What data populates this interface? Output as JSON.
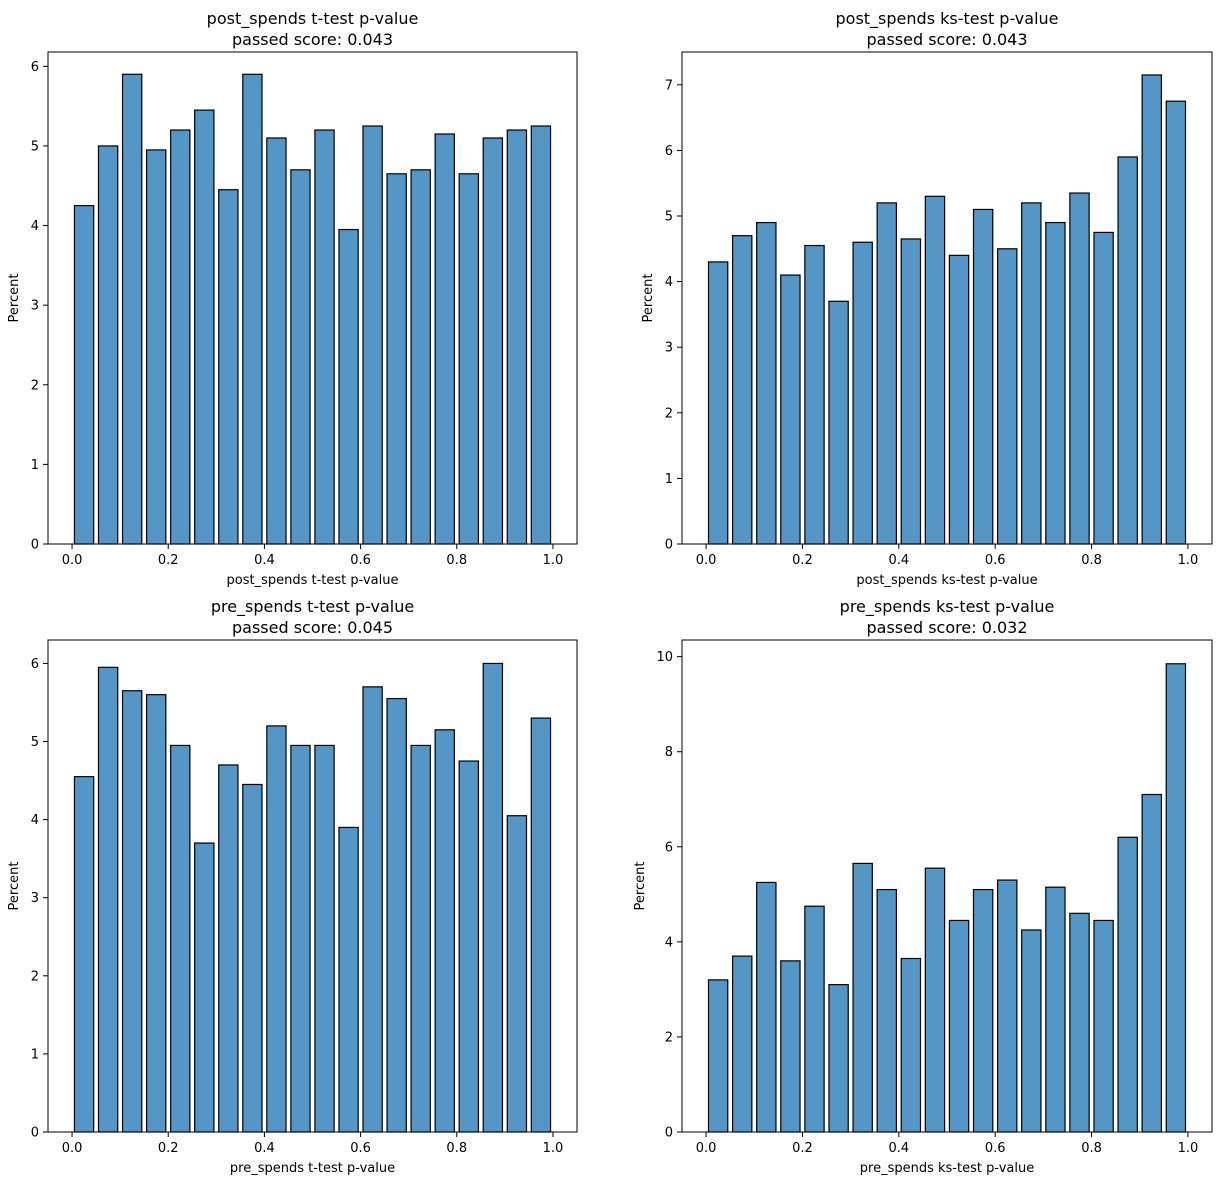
{
  "chart_data": [
    {
      "type": "bar",
      "title_line1": "post_spends t-test p-value",
      "title_line2": "passed score: 0.043",
      "xlabel": "post_spends t-test p-value",
      "ylabel": "Percent",
      "xlim": [
        -0.05,
        1.05
      ],
      "ylim": [
        0,
        6.18
      ],
      "xticks": [
        "0.0",
        "0.2",
        "0.4",
        "0.6",
        "0.8",
        "1.0"
      ],
      "yticks": [
        "0",
        "1",
        "2",
        "3",
        "4",
        "5",
        "6"
      ],
      "bin_centers": [
        0.025,
        0.075,
        0.125,
        0.175,
        0.225,
        0.275,
        0.325,
        0.375,
        0.425,
        0.475,
        0.525,
        0.575,
        0.625,
        0.675,
        0.725,
        0.775,
        0.825,
        0.875,
        0.925,
        0.975
      ],
      "values": [
        4.25,
        5.0,
        5.9,
        4.95,
        5.2,
        5.45,
        4.45,
        5.9,
        5.1,
        4.7,
        5.2,
        3.95,
        5.25,
        4.65,
        4.7,
        5.15,
        4.65,
        5.1,
        5.2,
        5.25
      ],
      "grid": false
    },
    {
      "type": "bar",
      "title_line1": "post_spends ks-test p-value",
      "title_line2": "passed score: 0.043",
      "xlabel": "post_spends ks-test p-value",
      "ylabel": "Percent",
      "xlim": [
        -0.05,
        1.05
      ],
      "ylim": [
        0,
        7.5
      ],
      "xticks": [
        "0.0",
        "0.2",
        "0.4",
        "0.6",
        "0.8",
        "1.0"
      ],
      "yticks": [
        "0",
        "1",
        "2",
        "3",
        "4",
        "5",
        "6",
        "7"
      ],
      "bin_centers": [
        0.025,
        0.075,
        0.125,
        0.175,
        0.225,
        0.275,
        0.325,
        0.375,
        0.425,
        0.475,
        0.525,
        0.575,
        0.625,
        0.675,
        0.725,
        0.775,
        0.825,
        0.875,
        0.925,
        0.975
      ],
      "values": [
        4.3,
        4.7,
        4.9,
        4.1,
        4.55,
        3.7,
        4.6,
        5.2,
        4.65,
        5.3,
        4.4,
        5.1,
        4.5,
        5.2,
        4.9,
        5.35,
        4.75,
        5.9,
        7.15,
        6.75
      ],
      "grid": false
    },
    {
      "type": "bar",
      "title_line1": "pre_spends t-test p-value",
      "title_line2": "passed score: 0.045",
      "xlabel": "pre_spends t-test p-value",
      "ylabel": "Percent",
      "xlim": [
        -0.05,
        1.05
      ],
      "ylim": [
        0,
        6.3
      ],
      "xticks": [
        "0.0",
        "0.2",
        "0.4",
        "0.6",
        "0.8",
        "1.0"
      ],
      "yticks": [
        "0",
        "1",
        "2",
        "3",
        "4",
        "5",
        "6"
      ],
      "bin_centers": [
        0.025,
        0.075,
        0.125,
        0.175,
        0.225,
        0.275,
        0.325,
        0.375,
        0.425,
        0.475,
        0.525,
        0.575,
        0.625,
        0.675,
        0.725,
        0.775,
        0.825,
        0.875,
        0.925,
        0.975
      ],
      "values": [
        4.55,
        5.95,
        5.65,
        5.6,
        4.95,
        3.7,
        4.7,
        4.45,
        5.2,
        4.95,
        4.95,
        3.9,
        5.7,
        5.55,
        4.95,
        5.15,
        4.75,
        6.0,
        4.05,
        5.3
      ],
      "grid": false
    },
    {
      "type": "bar",
      "title_line1": "pre_spends ks-test p-value",
      "title_line2": "passed score: 0.032",
      "xlabel": "pre_spends ks-test p-value",
      "ylabel": "Percent",
      "xlim": [
        -0.05,
        1.05
      ],
      "ylim": [
        0,
        10.35
      ],
      "xticks": [
        "0.0",
        "0.2",
        "0.4",
        "0.6",
        "0.8",
        "1.0"
      ],
      "yticks": [
        "0",
        "2",
        "4",
        "6",
        "8",
        "10"
      ],
      "bin_centers": [
        0.025,
        0.075,
        0.125,
        0.175,
        0.225,
        0.275,
        0.325,
        0.375,
        0.425,
        0.475,
        0.525,
        0.575,
        0.625,
        0.675,
        0.725,
        0.775,
        0.825,
        0.875,
        0.925,
        0.975
      ],
      "values": [
        3.2,
        3.7,
        5.25,
        3.6,
        4.75,
        3.1,
        5.65,
        5.1,
        3.65,
        5.55,
        4.45,
        5.1,
        5.3,
        4.25,
        5.15,
        4.6,
        4.45,
        6.2,
        7.1,
        9.85
      ],
      "grid": false
    }
  ],
  "colors": {
    "bar_fill": "#5497c7",
    "bar_edge": "#000000",
    "background": "#ffffff"
  }
}
